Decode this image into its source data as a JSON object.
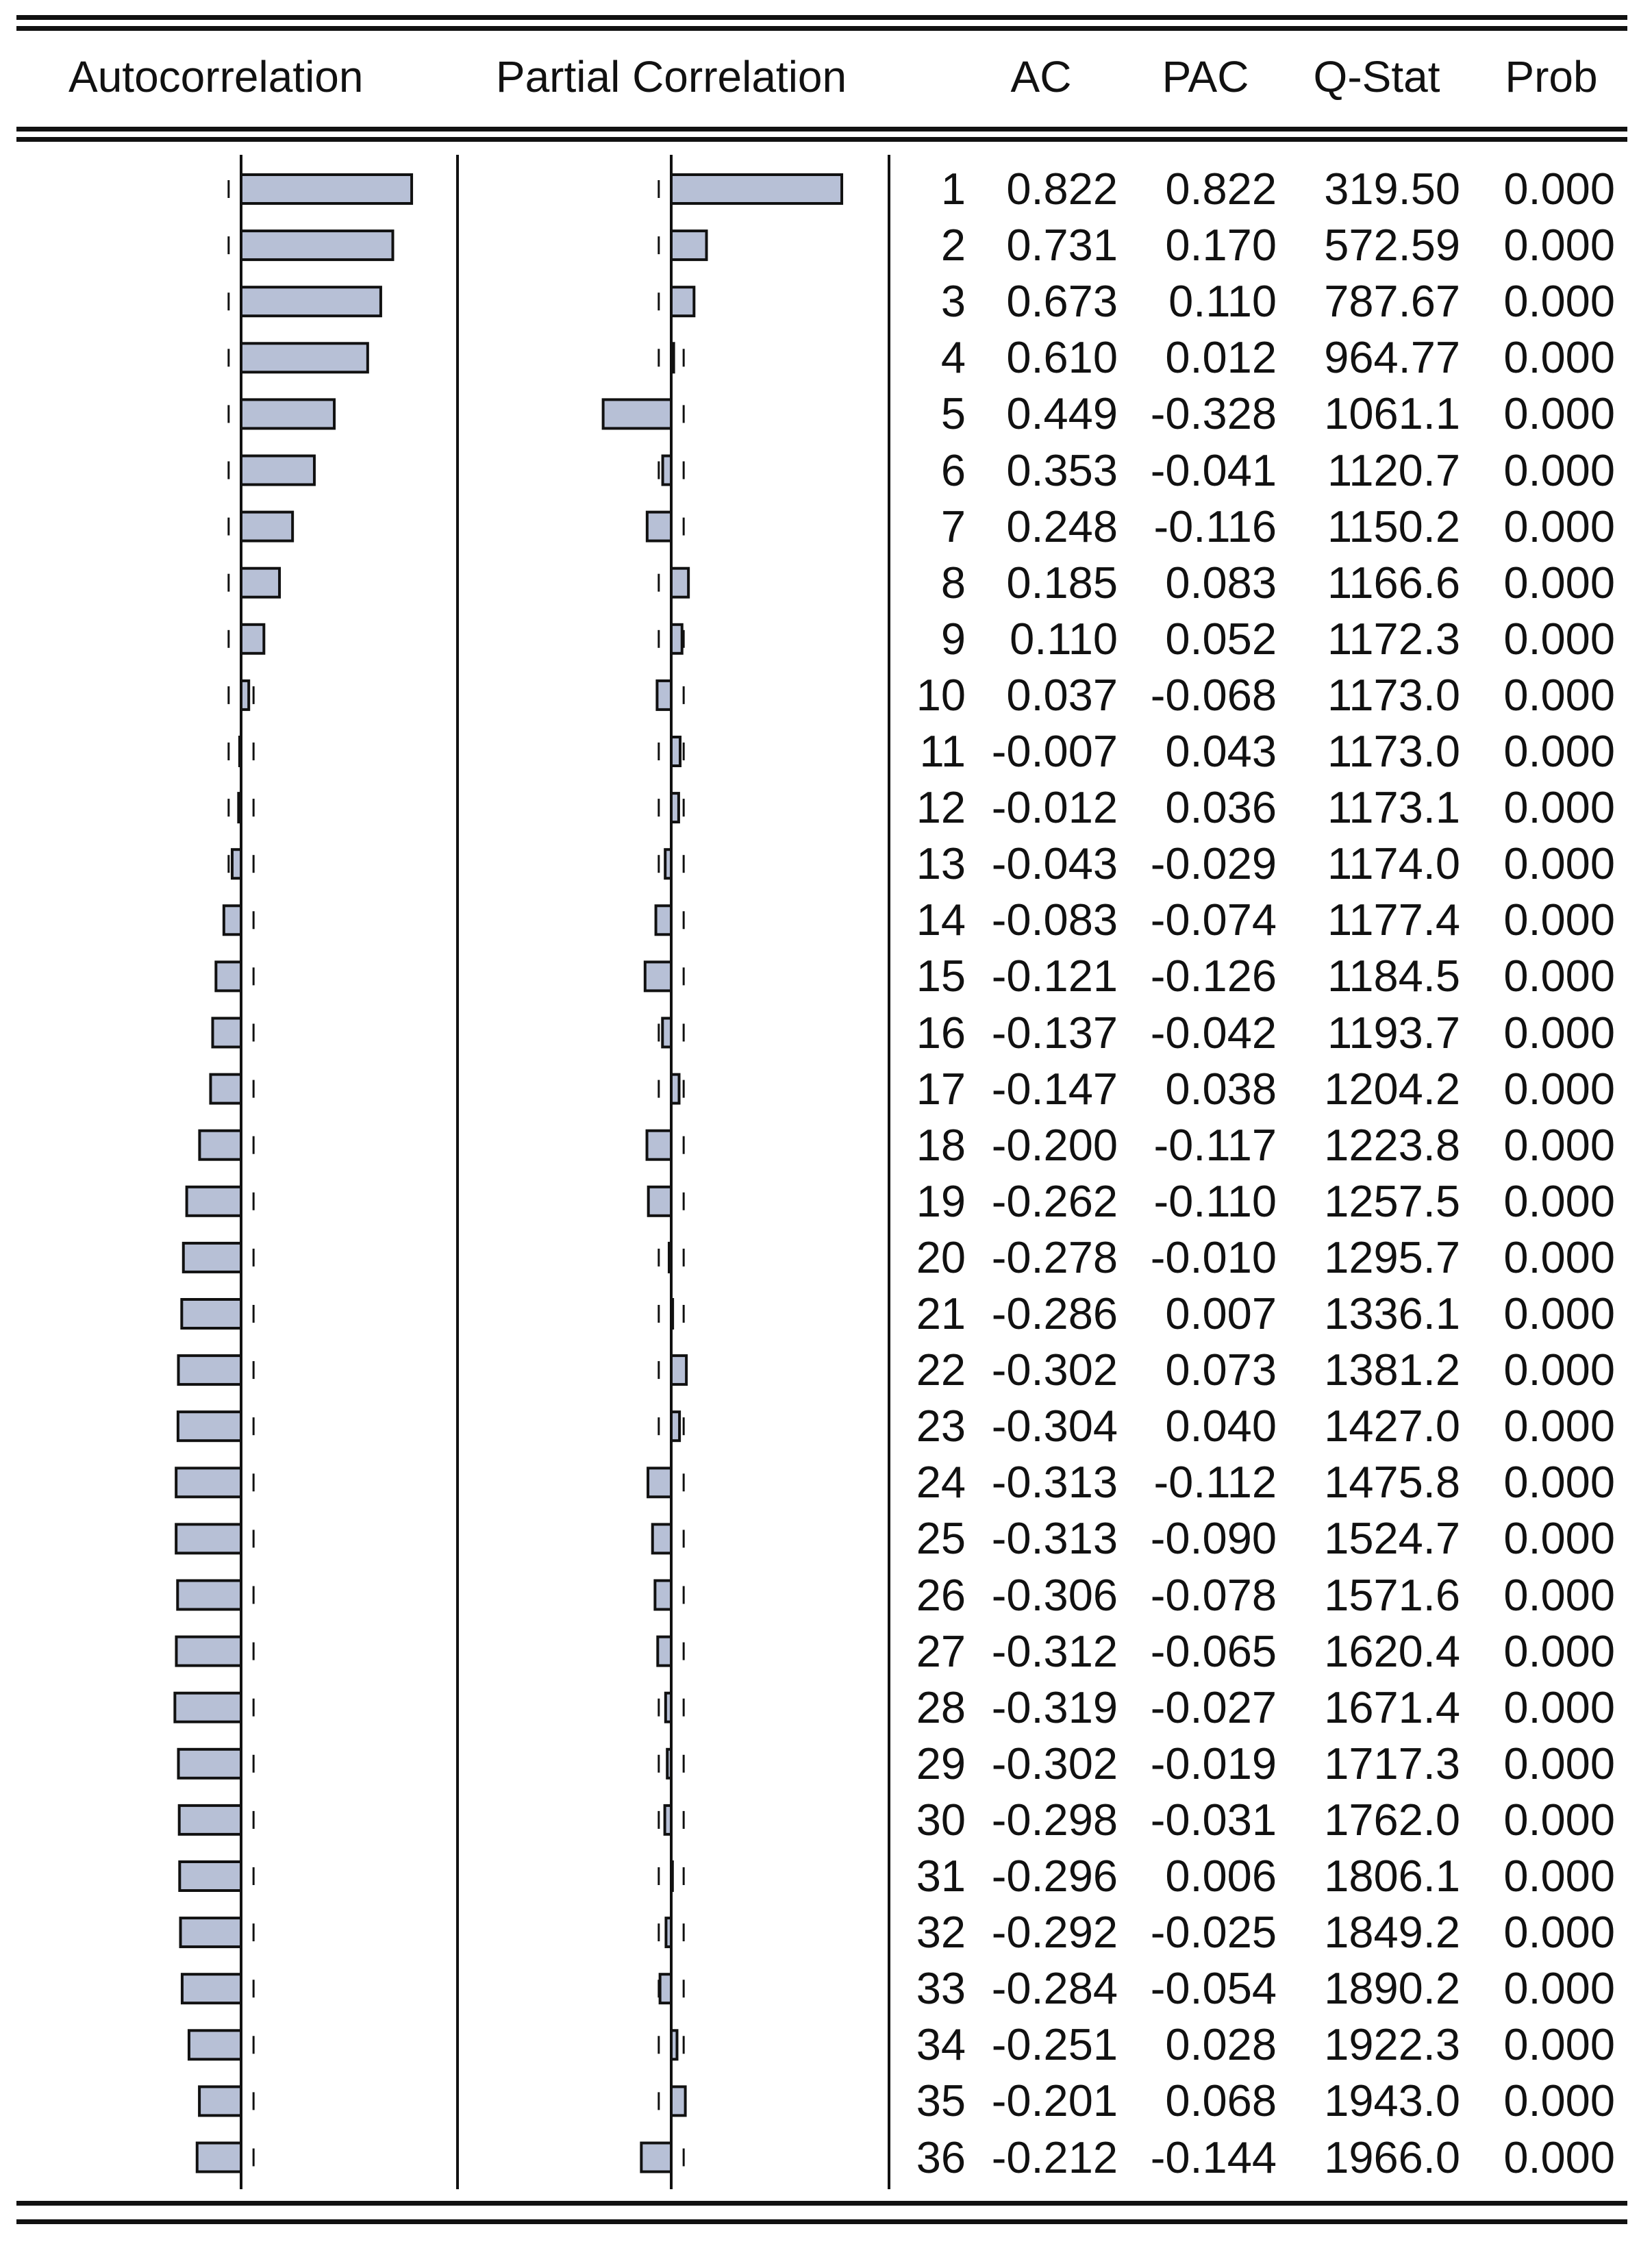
{
  "headers": {
    "autocorrelation": "Autocorrelation",
    "partial_correlation": "Partial Correlation",
    "ac": "AC",
    "pac": "PAC",
    "qstat": "Q-Stat",
    "prob": "Prob"
  },
  "colors": {
    "bar_fill": "#b7c0d6",
    "bar_stroke": "#111111",
    "line": "#111111"
  },
  "chart_data": {
    "type": "table",
    "columns": [
      "lag",
      "AC",
      "PAC",
      "Q-Stat",
      "Prob"
    ],
    "rows": [
      [
        "1",
        "0.822",
        "0.822",
        "319.50",
        "0.000"
      ],
      [
        "2",
        "0.731",
        "0.170",
        "572.59",
        "0.000"
      ],
      [
        "3",
        "0.673",
        "0.110",
        "787.67",
        "0.000"
      ],
      [
        "4",
        "0.610",
        "0.012",
        "964.77",
        "0.000"
      ],
      [
        "5",
        "0.449",
        "-0.328",
        "1061.1",
        "0.000"
      ],
      [
        "6",
        "0.353",
        "-0.041",
        "1120.7",
        "0.000"
      ],
      [
        "7",
        "0.248",
        "-0.116",
        "1150.2",
        "0.000"
      ],
      [
        "8",
        "0.185",
        "0.083",
        "1166.6",
        "0.000"
      ],
      [
        "9",
        "0.110",
        "0.052",
        "1172.3",
        "0.000"
      ],
      [
        "10",
        "0.037",
        "-0.068",
        "1173.0",
        "0.000"
      ],
      [
        "11",
        "-0.007",
        "0.043",
        "1173.0",
        "0.000"
      ],
      [
        "12",
        "-0.012",
        "0.036",
        "1173.1",
        "0.000"
      ],
      [
        "13",
        "-0.043",
        "-0.029",
        "1174.0",
        "0.000"
      ],
      [
        "14",
        "-0.083",
        "-0.074",
        "1177.4",
        "0.000"
      ],
      [
        "15",
        "-0.121",
        "-0.126",
        "1184.5",
        "0.000"
      ],
      [
        "16",
        "-0.137",
        "-0.042",
        "1193.7",
        "0.000"
      ],
      [
        "17",
        "-0.147",
        "0.038",
        "1204.2",
        "0.000"
      ],
      [
        "18",
        "-0.200",
        "-0.117",
        "1223.8",
        "0.000"
      ],
      [
        "19",
        "-0.262",
        "-0.110",
        "1257.5",
        "0.000"
      ],
      [
        "20",
        "-0.278",
        "-0.010",
        "1295.7",
        "0.000"
      ],
      [
        "21",
        "-0.286",
        "0.007",
        "1336.1",
        "0.000"
      ],
      [
        "22",
        "-0.302",
        "0.073",
        "1381.2",
        "0.000"
      ],
      [
        "23",
        "-0.304",
        "0.040",
        "1427.0",
        "0.000"
      ],
      [
        "24",
        "-0.313",
        "-0.112",
        "1475.8",
        "0.000"
      ],
      [
        "25",
        "-0.313",
        "-0.090",
        "1524.7",
        "0.000"
      ],
      [
        "26",
        "-0.306",
        "-0.078",
        "1571.6",
        "0.000"
      ],
      [
        "27",
        "-0.312",
        "-0.065",
        "1620.4",
        "0.000"
      ],
      [
        "28",
        "-0.319",
        "-0.027",
        "1671.4",
        "0.000"
      ],
      [
        "29",
        "-0.302",
        "-0.019",
        "1717.3",
        "0.000"
      ],
      [
        "30",
        "-0.298",
        "-0.031",
        "1762.0",
        "0.000"
      ],
      [
        "31",
        "-0.296",
        "0.006",
        "1806.1",
        "0.000"
      ],
      [
        "32",
        "-0.292",
        "-0.025",
        "1849.2",
        "0.000"
      ],
      [
        "33",
        "-0.284",
        "-0.054",
        "1890.2",
        "0.000"
      ],
      [
        "34",
        "-0.251",
        "0.028",
        "1922.3",
        "0.000"
      ],
      [
        "35",
        "-0.201",
        "0.068",
        "1943.0",
        "0.000"
      ],
      [
        "36",
        "-0.212",
        "-0.144",
        "1966.0",
        "0.000"
      ]
    ],
    "ac_confidence_bound": 0.06,
    "pac_confidence_bound": 0.06
  }
}
